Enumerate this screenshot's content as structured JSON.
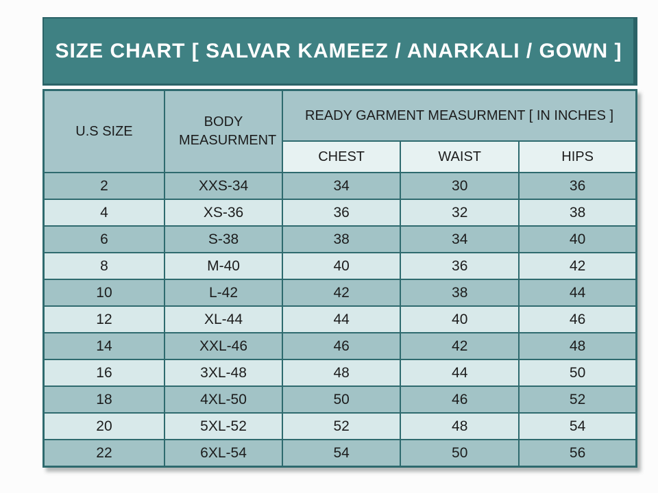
{
  "title": "SIZE CHART [ SALVAR KAMEEZ / ANARKALI / GOWN ]",
  "table": {
    "headers": {
      "us_size": "U.S SIZE",
      "body_measurement": "BODY MEASURMENT",
      "ready_garment": "READY GARMENT MEASURMENT [ IN INCHES ]",
      "sub": [
        "CHEST",
        "WAIST",
        "HIPS"
      ]
    },
    "rows": [
      [
        "2",
        "XXS-34",
        "34",
        "30",
        "36"
      ],
      [
        "4",
        "XS-36",
        "36",
        "32",
        "38"
      ],
      [
        "6",
        "S-38",
        "38",
        "34",
        "40"
      ],
      [
        "8",
        "M-40",
        "40",
        "36",
        "42"
      ],
      [
        "10",
        "L-42",
        "42",
        "38",
        "44"
      ],
      [
        "12",
        "XL-44",
        "44",
        "40",
        "46"
      ],
      [
        "14",
        "XXL-46",
        "46",
        "42",
        "48"
      ],
      [
        "16",
        "3XL-48",
        "48",
        "44",
        "50"
      ],
      [
        "18",
        "4XL-50",
        "50",
        "46",
        "52"
      ],
      [
        "20",
        "5XL-52",
        "52",
        "48",
        "54"
      ],
      [
        "22",
        "6XL-54",
        "54",
        "50",
        "56"
      ]
    ]
  },
  "chart_data": {
    "type": "table",
    "title": "SIZE CHART [ SALVAR KAMEEZ / ANARKALI / GOWN ]",
    "columns": [
      "U.S SIZE",
      "BODY MEASURMENT",
      "CHEST",
      "WAIST",
      "HIPS"
    ],
    "column_group": "READY GARMENT MEASURMENT [ IN INCHES ]",
    "rows": [
      [
        "2",
        "XXS-34",
        "34",
        "30",
        "36"
      ],
      [
        "4",
        "XS-36",
        "36",
        "32",
        "38"
      ],
      [
        "6",
        "S-38",
        "38",
        "34",
        "40"
      ],
      [
        "8",
        "M-40",
        "40",
        "36",
        "42"
      ],
      [
        "10",
        "L-42",
        "42",
        "38",
        "44"
      ],
      [
        "12",
        "XL-44",
        "44",
        "40",
        "46"
      ],
      [
        "14",
        "XXL-46",
        "46",
        "42",
        "48"
      ],
      [
        "16",
        "3XL-48",
        "48",
        "44",
        "50"
      ],
      [
        "18",
        "4XL-50",
        "50",
        "46",
        "52"
      ],
      [
        "20",
        "5XL-52",
        "52",
        "48",
        "54"
      ],
      [
        "22",
        "6XL-54",
        "54",
        "50",
        "56"
      ]
    ]
  },
  "colors": {
    "title_bg": "#3F8183",
    "title_text": "#FFFFFF",
    "header_bg": "#A6C5C9",
    "subheader_bg": "#E7F2F2",
    "row_dark": "#A2C3C6",
    "row_light": "#D8E9EA",
    "border": "#2E6A6E",
    "text": "#1C1C1C"
  }
}
